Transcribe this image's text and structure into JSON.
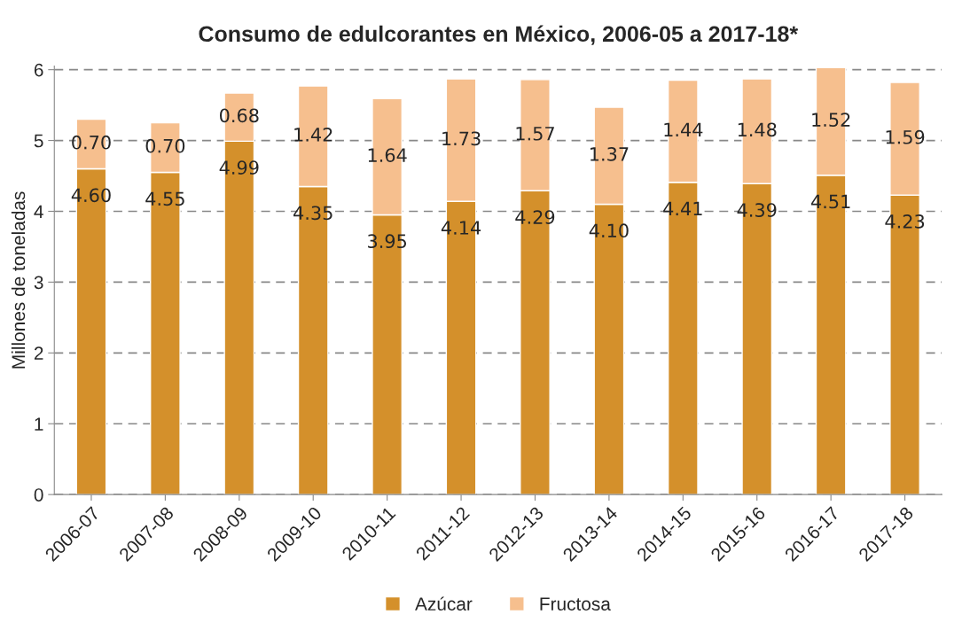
{
  "chart_data": {
    "type": "bar",
    "title": "Consumo de edulcorantes en México, 2006-05 a 2017-18*",
    "ylabel": "Millones de toneladas",
    "categories": [
      "2006-07",
      "2007-08",
      "2008-09",
      "2009-10",
      "2010-11",
      "2011-12",
      "2012-13",
      "2013-14",
      "2014-15",
      "2015-16",
      "2016-17",
      "2017-18"
    ],
    "series": [
      {
        "name": "Azúcar",
        "color": "#d4902b",
        "values": [
          4.6,
          4.55,
          4.99,
          4.35,
          3.95,
          4.14,
          4.29,
          4.1,
          4.41,
          4.39,
          4.51,
          4.23
        ],
        "value_labels": [
          "4.60",
          "4.55",
          "4.99",
          "4.35",
          "3.95",
          "4.14",
          "4.29",
          "4.10",
          "4.41",
          "4.39",
          "4.51",
          "4.23"
        ]
      },
      {
        "name": "Fructosa",
        "color": "#f6bf8e",
        "values": [
          0.7,
          0.7,
          0.68,
          1.42,
          1.64,
          1.73,
          1.57,
          1.37,
          1.44,
          1.48,
          1.52,
          1.59
        ],
        "value_labels": [
          "0.70",
          "0.70",
          "0.68",
          "1.42",
          "1.64",
          "1.73",
          "1.57",
          "1.37",
          "1.44",
          "1.48",
          "1.52",
          "1.59"
        ]
      }
    ],
    "stacked": true,
    "ylim": [
      0,
      6.05
    ],
    "yticks": [
      0,
      1,
      2,
      3,
      4,
      5,
      6
    ],
    "grid": "y",
    "legend": "bottom"
  }
}
